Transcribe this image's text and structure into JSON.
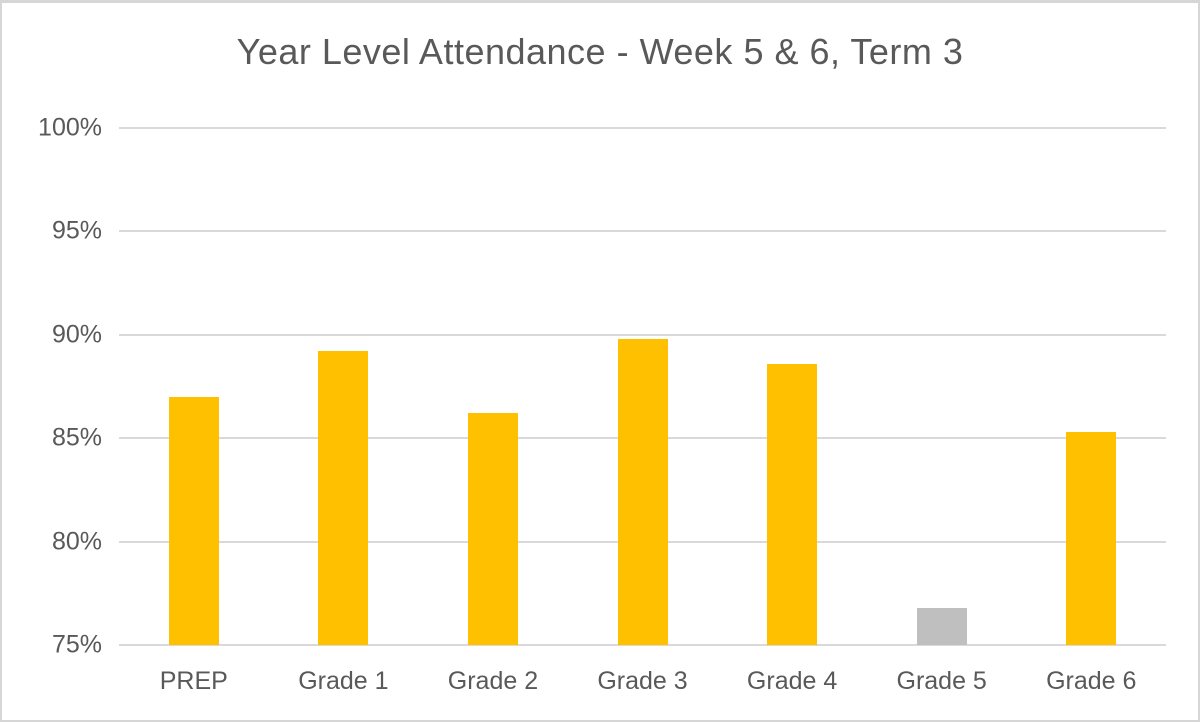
{
  "window": {
    "background": "#FFFFFF",
    "border_color": "#D6D6D6"
  },
  "chart_data": {
    "type": "bar",
    "title": "Year Level Attendance - Week 5 & 6, Term 3",
    "categories": [
      "PREP",
      "Grade 1",
      "Grade 2",
      "Grade 3",
      "Grade 4",
      "Grade 5",
      "Grade 6"
    ],
    "values": [
      87.0,
      89.2,
      86.2,
      89.8,
      88.6,
      76.8,
      85.3
    ],
    "value_unit": "%",
    "bar_colors": [
      "#FFC000",
      "#FFC000",
      "#FFC000",
      "#FFC000",
      "#FFC000",
      "#BFBFBF",
      "#FFC000"
    ],
    "default_bar_color": "#FFC000",
    "muted_bar_color": "#BFBFBF",
    "ylim": [
      75,
      100
    ],
    "yticks": [
      {
        "value": 100,
        "label": "100%"
      },
      {
        "value": 95,
        "label": "95%"
      },
      {
        "value": 90,
        "label": "90%"
      },
      {
        "value": 85,
        "label": "85%"
      },
      {
        "value": 80,
        "label": "80%"
      },
      {
        "value": 75,
        "label": "75%"
      }
    ],
    "grid": "horizontal",
    "gridline_color": "#D9D9D9",
    "axis_text_color": "#595959",
    "title_color": "#595959",
    "legend_position": "none"
  }
}
